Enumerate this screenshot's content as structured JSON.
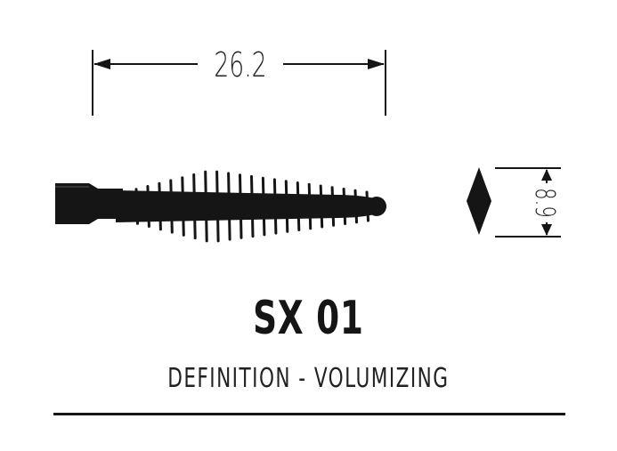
{
  "dimensions": {
    "length": "26.2",
    "diameter": "8.9"
  },
  "product": {
    "model": "SX 01",
    "description": "DEFINITION - VOLUMIZING"
  },
  "colors": {
    "ink": "#151515",
    "background": "#ffffff"
  }
}
